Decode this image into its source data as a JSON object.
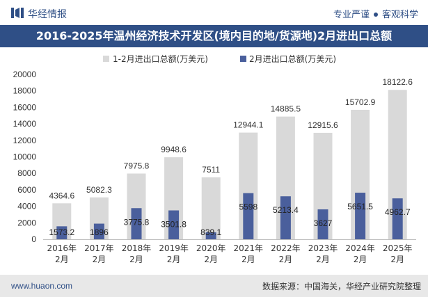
{
  "brand": {
    "name": "华经情报",
    "slogan_left": "专业严谨",
    "slogan_right": "客观科学"
  },
  "title": "2016-2025年温州经济技术开发区(境内目的地/货源地)2月进出口总额",
  "footer": {
    "url": "www.huaon.com",
    "source": "数据来源：中国海关，华经产业研究院整理"
  },
  "colors": {
    "brand_blue": "#2f4f86",
    "series_total": "#d9d9d9",
    "series_feb": "#4a5f9c"
  },
  "chart_data": {
    "type": "bar",
    "categories": [
      "2016年\n2月",
      "2017年\n2月",
      "2018年\n2月",
      "2019年\n2月",
      "2020年\n2月",
      "2021年\n2月",
      "2022年\n2月",
      "2023年\n2月",
      "2024年\n2月",
      "2025年\n2月"
    ],
    "series": [
      {
        "name": "1-2月进出口总额(万美元)",
        "values": [
          4364.6,
          5082.3,
          7975.8,
          9948.6,
          7511,
          12944.1,
          14885.5,
          12915.6,
          15702.9,
          18122.6
        ],
        "labels": [
          "4364.6",
          "5082.3",
          "7975.8",
          "9948.6",
          "7511",
          "12944.1",
          "14885.5",
          "12915.6",
          "15702.9",
          "18122.6"
        ]
      },
      {
        "name": "2月进出口总额(万美元)",
        "values": [
          1573.2,
          1896,
          3775.8,
          3501.8,
          839.1,
          5598,
          5213.4,
          3627,
          5651.5,
          4962.7
        ],
        "labels": [
          "1573.2",
          "1896",
          "3775.8",
          "3501.8",
          "839.1",
          "5598",
          "5213.4",
          "3627",
          "5651.5",
          "4962.7"
        ]
      }
    ],
    "ylim": [
      0,
      20000
    ],
    "yticks": [
      "0",
      "2000",
      "4000",
      "6000",
      "8000",
      "10000",
      "12000",
      "14000",
      "16000",
      "18000",
      "20000"
    ],
    "grid": false,
    "legend": "top"
  }
}
